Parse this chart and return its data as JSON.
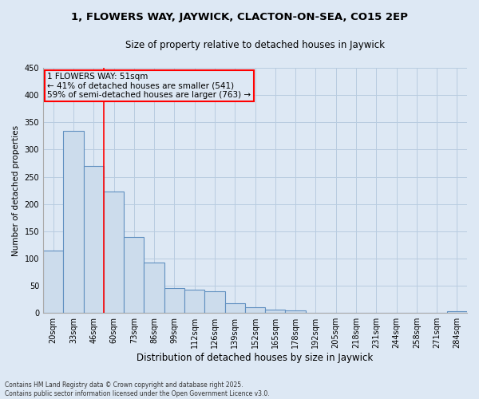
{
  "title": "1, FLOWERS WAY, JAYWICK, CLACTON-ON-SEA, CO15 2EP",
  "subtitle": "Size of property relative to detached houses in Jaywick",
  "xlabel": "Distribution of detached houses by size in Jaywick",
  "ylabel": "Number of detached properties",
  "categories": [
    "20sqm",
    "33sqm",
    "46sqm",
    "60sqm",
    "73sqm",
    "86sqm",
    "99sqm",
    "112sqm",
    "126sqm",
    "139sqm",
    "152sqm",
    "165sqm",
    "178sqm",
    "192sqm",
    "205sqm",
    "218sqm",
    "231sqm",
    "244sqm",
    "258sqm",
    "271sqm",
    "284sqm"
  ],
  "values": [
    115,
    335,
    270,
    223,
    140,
    93,
    45,
    43,
    40,
    18,
    10,
    6,
    5,
    1,
    0,
    0,
    0,
    0,
    0,
    0,
    3
  ],
  "bar_color": "#ccdcec",
  "bar_edge_color": "#6090c0",
  "bar_edge_width": 0.8,
  "grid_color": "#b8cce0",
  "background_color": "#dde8f4",
  "ylim": [
    0,
    450
  ],
  "yticks": [
    0,
    50,
    100,
    150,
    200,
    250,
    300,
    350,
    400,
    450
  ],
  "red_line_x": 2.5,
  "annotation_title": "1 FLOWERS WAY: 51sqm",
  "annotation_line1": "← 41% of detached houses are smaller (541)",
  "annotation_line2": "59% of semi-detached houses are larger (763) →",
  "footer_line1": "Contains HM Land Registry data © Crown copyright and database right 2025.",
  "footer_line2": "Contains public sector information licensed under the Open Government Licence v3.0.",
  "title_fontsize": 9.5,
  "subtitle_fontsize": 8.5,
  "xlabel_fontsize": 8.5,
  "ylabel_fontsize": 7.5,
  "tick_fontsize": 7,
  "annotation_fontsize": 7.5,
  "footer_fontsize": 5.5
}
